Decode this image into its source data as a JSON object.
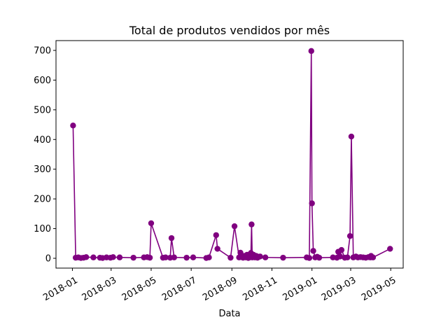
{
  "chart_data": {
    "type": "line",
    "title": "Total de produtos vendidos por mês",
    "xlabel": "Data",
    "ylabel": "",
    "xlim": [
      "2017-12-07",
      "2019-05-20"
    ],
    "ylim": [
      -33,
      733
    ],
    "x_ticks": [
      "2018-01",
      "2018-03",
      "2018-05",
      "2018-07",
      "2018-09",
      "2018-11",
      "2019-01",
      "2019-03",
      "2019-05"
    ],
    "y_ticks": [
      0,
      100,
      200,
      300,
      400,
      500,
      600,
      700
    ],
    "grid": false,
    "color": "#800080",
    "marker": "circle",
    "series": [
      {
        "x": [
          "2018-01-02",
          "2018-01-06",
          "2018-01-10",
          "2018-01-14",
          "2018-01-18",
          "2018-01-22",
          "2018-02-02",
          "2018-02-12",
          "2018-02-16",
          "2018-02-22",
          "2018-02-28",
          "2018-03-04",
          "2018-03-14",
          "2018-04-04",
          "2018-04-20",
          "2018-04-25",
          "2018-04-29",
          "2018-05-01",
          "2018-05-19",
          "2018-05-23",
          "2018-05-30",
          "2018-06-01",
          "2018-06-05",
          "2018-06-24",
          "2018-07-04",
          "2018-07-24",
          "2018-07-28",
          "2018-08-08",
          "2018-08-10",
          "2018-08-30",
          "2018-09-05",
          "2018-09-12",
          "2018-09-14",
          "2018-09-16",
          "2018-09-18",
          "2018-09-20",
          "2018-09-22",
          "2018-09-24",
          "2018-09-26",
          "2018-09-28",
          "2018-09-30",
          "2018-10-01",
          "2018-10-02",
          "2018-10-04",
          "2018-10-06",
          "2018-10-08",
          "2018-10-10",
          "2018-10-12",
          "2018-10-14",
          "2018-10-22",
          "2018-11-18",
          "2018-12-24",
          "2018-12-28",
          "2018-12-31",
          "2019-01-01",
          "2019-01-03",
          "2019-01-06",
          "2019-01-09",
          "2019-01-12",
          "2019-02-02",
          "2019-02-08",
          "2019-02-10",
          "2019-02-13",
          "2019-02-15",
          "2019-02-20",
          "2019-02-24",
          "2019-02-28",
          "2019-03-02",
          "2019-03-05",
          "2019-03-09",
          "2019-03-12",
          "2019-03-16",
          "2019-03-20",
          "2019-03-24",
          "2019-03-28",
          "2019-03-31",
          "2019-04-01",
          "2019-04-04",
          "2019-04-30"
        ],
        "y": [
          447,
          2,
          3,
          1,
          2,
          4,
          3,
          2,
          1,
          3,
          2,
          4,
          3,
          2,
          3,
          4,
          2,
          118,
          2,
          3,
          2,
          68,
          3,
          2,
          3,
          1,
          3,
          78,
          32,
          2,
          108,
          3,
          19,
          4,
          2,
          8,
          3,
          12,
          1,
          3,
          18,
          114,
          3,
          12,
          3,
          8,
          2,
          5,
          6,
          3,
          2,
          3,
          1,
          698,
          185,
          25,
          3,
          5,
          2,
          3,
          2,
          22,
          6,
          28,
          2,
          3,
          75,
          410,
          3,
          6,
          3,
          4,
          3,
          2,
          4,
          3,
          8,
          3,
          32
        ]
      }
    ]
  }
}
